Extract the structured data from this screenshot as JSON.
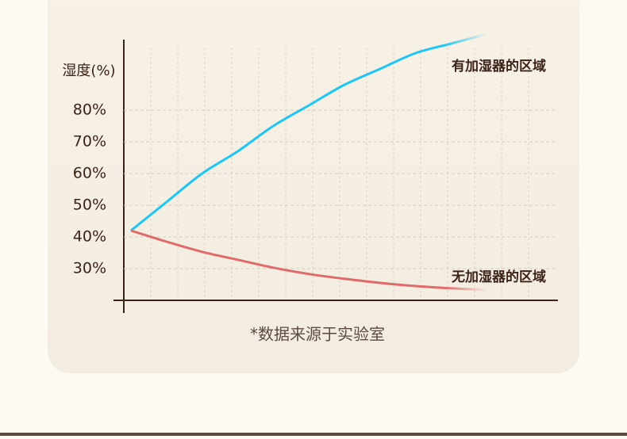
{
  "chart_data": {
    "type": "line",
    "y_label": "湿度(%)",
    "x": [
      0,
      1,
      2,
      3,
      4,
      5,
      6,
      7,
      8,
      9,
      10
    ],
    "xlim": [
      -0.2,
      12
    ],
    "ylim": [
      20,
      105
    ],
    "yticks": [
      {
        "value": 30,
        "label": "30%"
      },
      {
        "value": 40,
        "label": "40%"
      },
      {
        "value": 50,
        "label": "50%"
      },
      {
        "value": 60,
        "label": "60%"
      },
      {
        "value": 70,
        "label": "70%"
      },
      {
        "value": 80,
        "label": "80%"
      }
    ],
    "grid": true,
    "series": [
      {
        "name": "有加湿器的区域",
        "color": "#1ec6f5",
        "values": [
          42,
          51,
          60,
          67,
          75,
          81.5,
          88,
          93,
          98,
          101,
          104
        ]
      },
      {
        "name": "无加湿器的区域",
        "color": "#e06a6a",
        "values": [
          42,
          38.5,
          35.3,
          32.8,
          30.3,
          28.3,
          26.8,
          25.5,
          24.5,
          23.8,
          23.3
        ]
      }
    ],
    "footnote": "*数据来源于实验室"
  }
}
